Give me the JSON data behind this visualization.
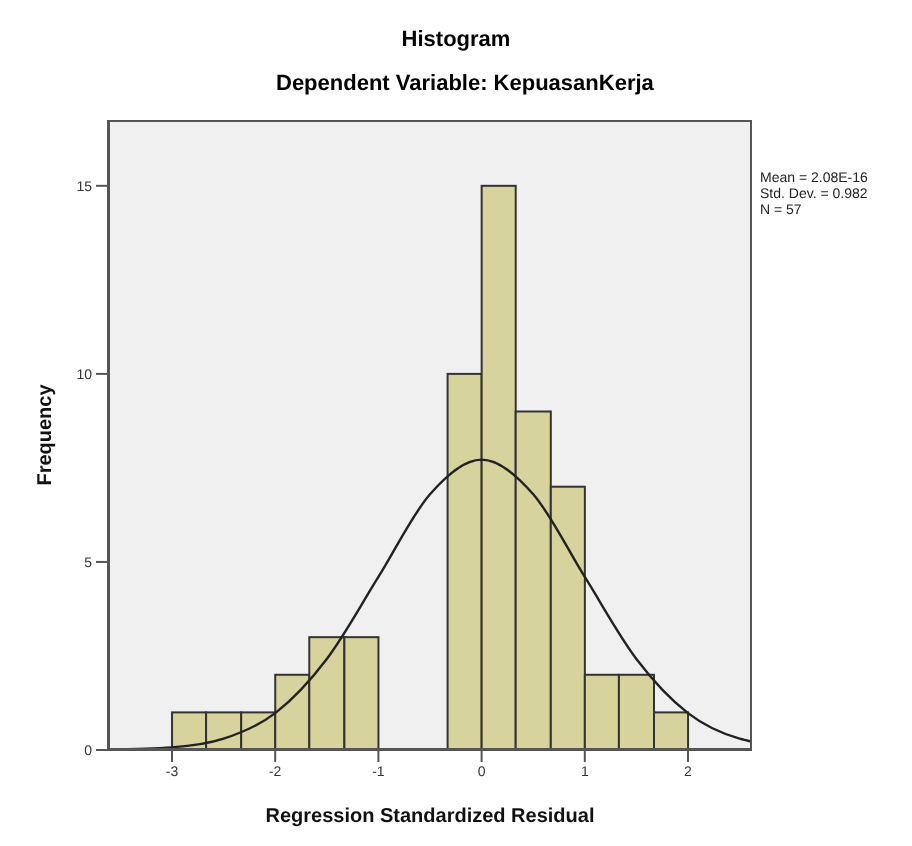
{
  "chart_data": {
    "type": "histogram",
    "title": "Histogram",
    "subtitle": "Dependent Variable: KepuasanKerja",
    "xlabel": "Regression Standardized Residual",
    "ylabel": "Frequency",
    "bins": [
      -3,
      -2.67,
      -2.33,
      -2,
      -1.67,
      -1.33,
      -1,
      -0.33,
      0,
      0.33,
      0.67,
      1,
      1.33,
      1.67,
      2
    ],
    "values": [
      1,
      1,
      1,
      2,
      3,
      3,
      0,
      10,
      15,
      9,
      7,
      2,
      2,
      1
    ],
    "color": "#d6d39c",
    "series": [
      {
        "type": "line",
        "color": "#222222",
        "x": [
          -3.62,
          -3,
          -2.5,
          -2,
          -1.5,
          -1,
          -0.5,
          0,
          0.5,
          1,
          1.5,
          2,
          2.5,
          2.62
        ],
        "values": [
          0.01,
          0.07,
          0.3,
          0.98,
          2.42,
          4.6,
          6.8,
          7.72,
          6.8,
          4.6,
          2.42,
          0.98,
          0.3,
          0.22
        ]
      }
    ],
    "xlim": [
      -3.62,
      2.62
    ],
    "xticks": [
      -3,
      -2,
      -1,
      0,
      1,
      2
    ],
    "ylim": [
      0,
      16.75
    ],
    "yticks": [
      0,
      5,
      10,
      15
    ],
    "annotations": [
      "Mean = 2.08E-16",
      "Std. Dev. = 0.982",
      "N = 57"
    ]
  }
}
